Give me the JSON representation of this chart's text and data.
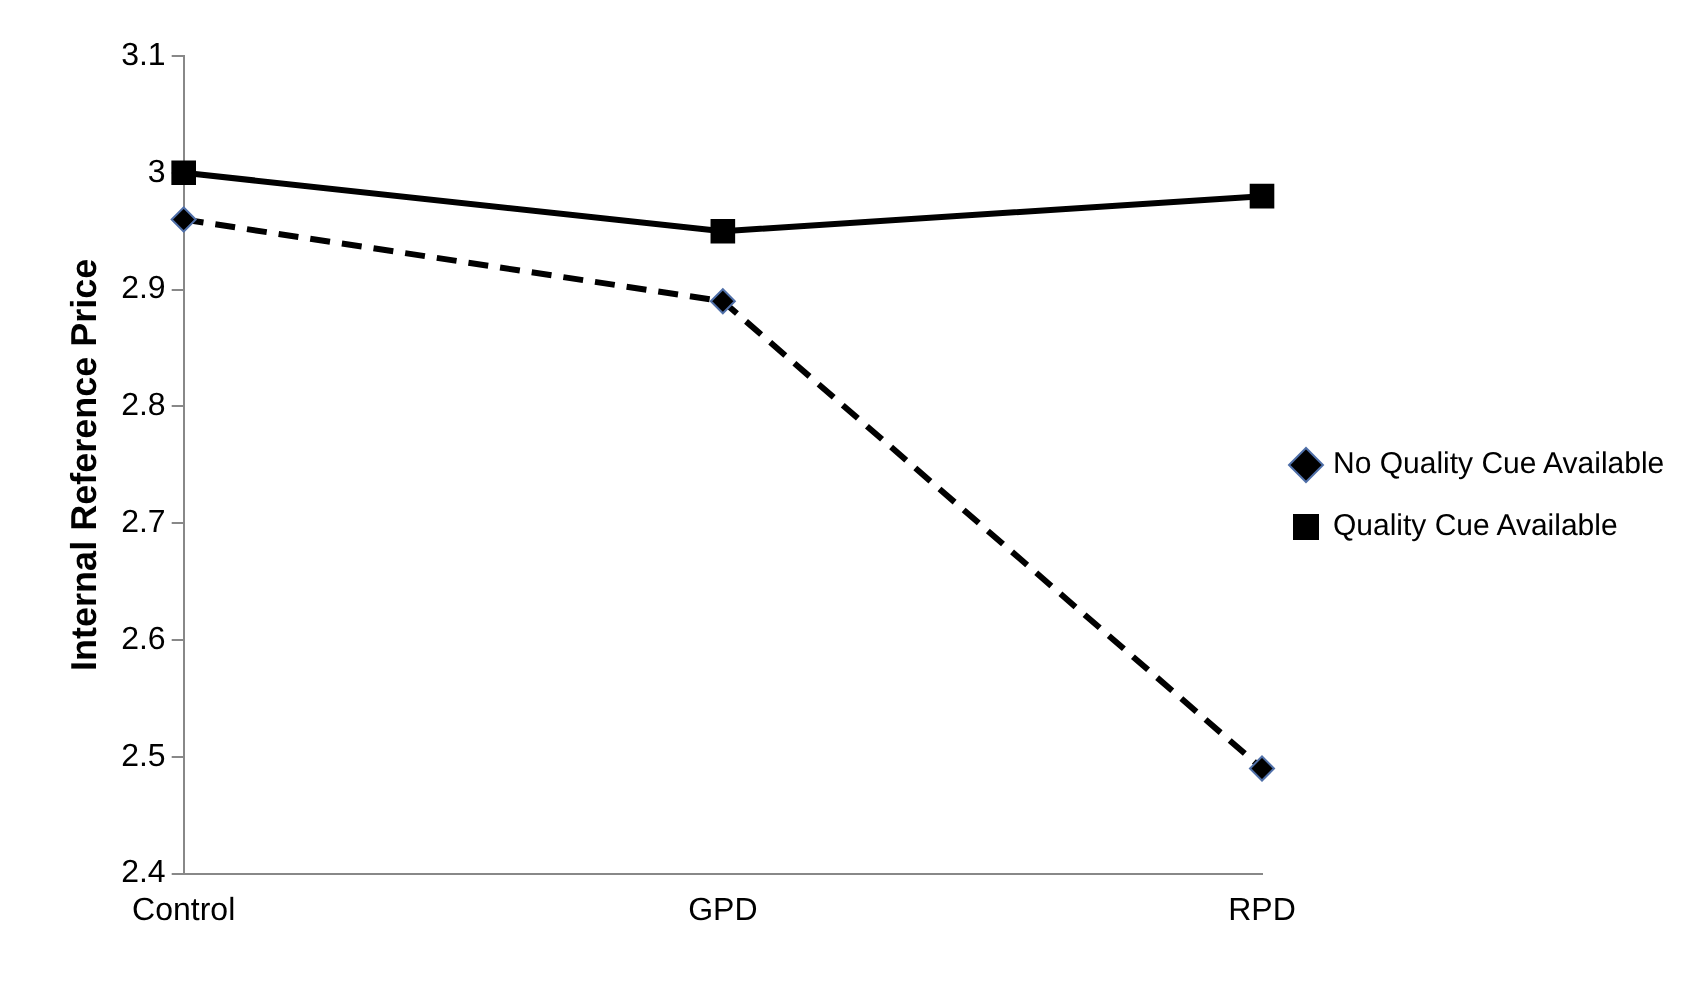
{
  "chart_data": {
    "type": "line",
    "ylabel": "Internal Reference Price",
    "categories": [
      "Control",
      "GPD",
      "RPD"
    ],
    "series": [
      {
        "name": "No Quality Cue Available",
        "color": "#000000",
        "values": [
          2.96,
          2.89,
          2.49
        ],
        "line_style": "dashed",
        "marker": "diamond"
      },
      {
        "name": "Quality Cue Available",
        "color": "#000000",
        "values": [
          3.0,
          2.95,
          2.98
        ],
        "line_style": "solid",
        "marker": "square"
      }
    ],
    "ylim": [
      2.4,
      3.1
    ],
    "yticks": [
      2.4,
      2.5,
      2.6,
      2.7,
      2.8,
      2.9,
      3,
      3.1
    ],
    "grid": false,
    "legend": "right"
  }
}
